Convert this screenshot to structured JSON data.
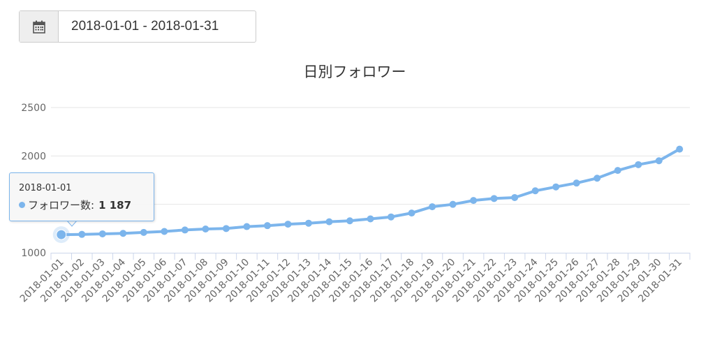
{
  "date_range": {
    "value": "2018-01-01 - 2018-01-31",
    "icon": "calendar-icon"
  },
  "colors": {
    "series": "#7cb5ec",
    "grid": "#e6e6e6",
    "axis": "#ccd6eb",
    "text": "#666666"
  },
  "tooltip": {
    "date": "2018-01-01",
    "series_label": "フォロワー数:",
    "value": "1 187"
  },
  "chart_data": {
    "type": "line",
    "title": "日別フォロワー",
    "xlabel": "",
    "ylabel": "",
    "ylim": [
      1000,
      2500
    ],
    "yticks": [
      1000,
      1500,
      2000,
      2500
    ],
    "grid": true,
    "categories": [
      "2018-01-01",
      "2018-01-02",
      "2018-01-03",
      "2018-01-04",
      "2018-01-05",
      "2018-01-06",
      "2018-01-07",
      "2018-01-08",
      "2018-01-09",
      "2018-01-10",
      "2018-01-11",
      "2018-01-12",
      "2018-01-13",
      "2018-01-14",
      "2018-01-15",
      "2018-01-16",
      "2018-01-17",
      "2018-01-18",
      "2018-01-19",
      "2018-01-20",
      "2018-01-21",
      "2018-01-22",
      "2018-01-23",
      "2018-01-24",
      "2018-01-25",
      "2018-01-26",
      "2018-01-27",
      "2018-01-28",
      "2018-01-29",
      "2018-01-30",
      "2018-01-31"
    ],
    "series": [
      {
        "name": "フォロワー数",
        "values": [
          1187,
          1190,
          1195,
          1200,
          1210,
          1220,
          1235,
          1245,
          1250,
          1270,
          1280,
          1295,
          1305,
          1320,
          1330,
          1350,
          1370,
          1410,
          1475,
          1500,
          1540,
          1560,
          1570,
          1640,
          1680,
          1720,
          1770,
          1850,
          1910,
          1950,
          2070
        ]
      }
    ]
  }
}
